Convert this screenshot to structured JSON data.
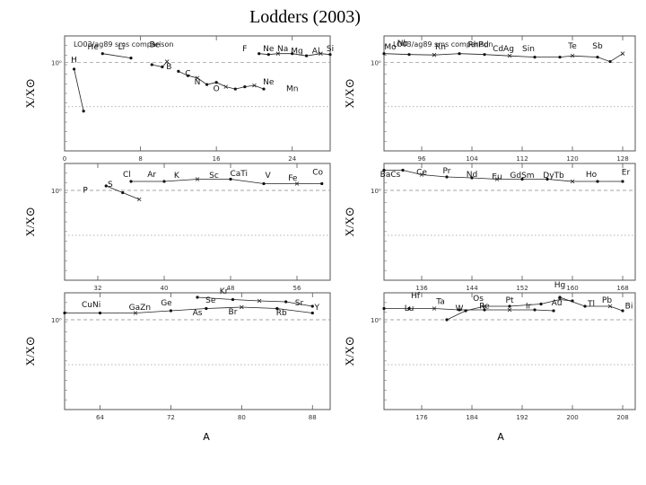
{
  "page": {
    "title": "Lodders (2003)"
  },
  "chart_data": [
    {
      "type": "scatter",
      "subtitle": "LO03/ag89 sms comparison",
      "ylabel": "X/X⊙",
      "ytick_label": "10⁰",
      "xlim": [
        0,
        28
      ],
      "ylim": [
        -2.0,
        0.6
      ],
      "xticks": [
        0,
        8,
        16,
        24
      ],
      "segments": [
        [
          [
            1.0,
            -0.15
          ],
          [
            2.0,
            -1.1
          ]
        ],
        [
          [
            4,
            0.2
          ],
          [
            7,
            0.1
          ]
        ],
        [
          [
            9.2,
            -0.05
          ],
          [
            10.3,
            -0.1
          ],
          [
            10.8,
            0.02
          ]
        ],
        [
          [
            12,
            -0.2
          ],
          [
            13,
            -0.3
          ],
          [
            14,
            -0.35
          ],
          [
            15,
            -0.5
          ],
          [
            16,
            -0.45
          ],
          [
            17,
            -0.55
          ],
          [
            18,
            -0.6
          ],
          [
            19,
            -0.55
          ],
          [
            20,
            -0.52
          ],
          [
            21,
            -0.6
          ]
        ],
        [
          [
            20.5,
            0.2
          ],
          [
            21.5,
            0.18
          ],
          [
            22.5,
            0.2
          ],
          [
            24,
            0.2
          ],
          [
            25.5,
            0.15
          ],
          [
            27,
            0.2
          ],
          [
            28,
            0.18
          ]
        ]
      ],
      "labels": [
        {
          "text": "H",
          "x": 1.0,
          "y": 0.0
        },
        {
          "text": "He",
          "x": 3.0,
          "y": 0.3
        },
        {
          "text": "Li",
          "x": 6.0,
          "y": 0.3
        },
        {
          "text": "Be",
          "x": 9.5,
          "y": 0.35
        },
        {
          "text": "B",
          "x": 11.0,
          "y": -0.15
        },
        {
          "text": "C",
          "x": 13.0,
          "y": -0.3
        },
        {
          "text": "N",
          "x": 14.0,
          "y": -0.5
        },
        {
          "text": "O",
          "x": 16.0,
          "y": -0.65
        },
        {
          "text": "F",
          "x": 19.0,
          "y": 0.25
        },
        {
          "text": "Ne",
          "x": 21.5,
          "y": 0.25
        },
        {
          "text": "Na",
          "x": 23.0,
          "y": 0.25
        },
        {
          "text": "Mg",
          "x": 24.5,
          "y": 0.2
        },
        {
          "text": "Al",
          "x": 26.5,
          "y": 0.2
        },
        {
          "text": "Si",
          "x": 28.0,
          "y": 0.25
        },
        {
          "text": "Ne",
          "x": 21.5,
          "y": -0.5
        },
        {
          "text": "Mn",
          "x": 24.0,
          "y": -0.65
        }
      ]
    },
    {
      "type": "scatter",
      "subtitle": "LO03/ag89 sms comparison",
      "ylabel": "X/X⊙",
      "ytick_label": "10⁰",
      "xlim": [
        90,
        130
      ],
      "ylim": [
        -2.0,
        0.6
      ],
      "xticks": [
        96,
        104,
        112,
        120,
        128
      ],
      "segments": [
        [
          [
            90,
            0.2
          ],
          [
            94,
            0.18
          ],
          [
            98,
            0.17
          ],
          [
            102,
            0.2
          ],
          [
            106,
            0.18
          ],
          [
            110,
            0.15
          ],
          [
            114,
            0.12
          ],
          [
            118,
            0.12
          ],
          [
            120,
            0.15
          ],
          [
            124,
            0.12
          ],
          [
            126,
            0.02
          ],
          [
            128,
            0.2
          ]
        ]
      ],
      "labels": [
        {
          "text": "Mo",
          "x": 91,
          "y": 0.3
        },
        {
          "text": "Nb",
          "x": 93,
          "y": 0.38
        },
        {
          "text": "Rn",
          "x": 99,
          "y": 0.3
        },
        {
          "text": "RhPd",
          "x": 105,
          "y": 0.35
        },
        {
          "text": "CdAg",
          "x": 109,
          "y": 0.25
        },
        {
          "text": "Sin",
          "x": 113,
          "y": 0.25
        },
        {
          "text": "Te",
          "x": 120,
          "y": 0.32
        },
        {
          "text": "Sb",
          "x": 124,
          "y": 0.32
        }
      ]
    },
    {
      "type": "scatter",
      "ylabel": "X/X⊙",
      "ytick_label": "10⁰",
      "xlim": [
        28,
        60
      ],
      "ylim": [
        -2.0,
        0.6
      ],
      "xticks": [
        32,
        40,
        48,
        56
      ],
      "segments": [
        [
          [
            33,
            0.1
          ],
          [
            35,
            -0.05
          ],
          [
            37,
            -0.2
          ]
        ],
        [
          [
            36,
            0.2
          ],
          [
            40,
            0.2
          ],
          [
            44,
            0.25
          ],
          [
            48,
            0.25
          ],
          [
            52,
            0.15
          ],
          [
            56,
            0.15
          ],
          [
            59,
            0.15
          ]
        ]
      ],
      "labels": [
        {
          "text": "P",
          "x": 30.5,
          "y": -0.05
        },
        {
          "text": "S",
          "x": 33.5,
          "y": 0.08
        },
        {
          "text": "Cl",
          "x": 35.5,
          "y": 0.3
        },
        {
          "text": "Ar",
          "x": 38.5,
          "y": 0.3
        },
        {
          "text": "K",
          "x": 41.5,
          "y": 0.28
        },
        {
          "text": "Sc",
          "x": 46,
          "y": 0.28
        },
        {
          "text": "CaTi",
          "x": 49,
          "y": 0.32
        },
        {
          "text": "V",
          "x": 52.5,
          "y": 0.28
        },
        {
          "text": "Fe",
          "x": 55.5,
          "y": 0.22
        },
        {
          "text": "Co",
          "x": 58.5,
          "y": 0.35
        }
      ]
    },
    {
      "type": "scatter",
      "ylabel": "X/X⊙",
      "ytick_label": "10⁰",
      "xlim": [
        130,
        170
      ],
      "ylim": [
        -2.0,
        0.6
      ],
      "xticks": [
        136,
        144,
        152,
        160,
        168
      ],
      "segments": [
        [
          [
            130,
            0.45
          ],
          [
            133,
            0.45
          ],
          [
            136,
            0.35
          ],
          [
            140,
            0.3
          ],
          [
            144,
            0.28
          ],
          [
            148,
            0.25
          ],
          [
            152,
            0.25
          ],
          [
            156,
            0.25
          ],
          [
            160,
            0.2
          ],
          [
            164,
            0.2
          ],
          [
            168,
            0.2
          ]
        ]
      ],
      "labels": [
        {
          "text": "BaCs",
          "x": 131,
          "y": 0.3
        },
        {
          "text": "Ce",
          "x": 136,
          "y": 0.35
        },
        {
          "text": "Pr",
          "x": 140,
          "y": 0.38
        },
        {
          "text": "Nd",
          "x": 144,
          "y": 0.3
        },
        {
          "text": "Eu",
          "x": 148,
          "y": 0.25
        },
        {
          "text": "GdSm",
          "x": 152,
          "y": 0.28
        },
        {
          "text": "DyTb",
          "x": 157,
          "y": 0.28
        },
        {
          "text": "Ho",
          "x": 163,
          "y": 0.3
        },
        {
          "text": "Er",
          "x": 168.5,
          "y": 0.35
        }
      ]
    },
    {
      "type": "scatter",
      "ylabel": "X/X⊙",
      "ytick_label": "10⁰",
      "xlim": [
        60,
        90
      ],
      "ylim": [
        -2.0,
        0.6
      ],
      "xticks": [
        64,
        72,
        80,
        88
      ],
      "xlabel": "A",
      "segments": [
        [
          [
            60,
            0.15
          ],
          [
            64,
            0.15
          ],
          [
            68,
            0.15
          ],
          [
            72,
            0.2
          ],
          [
            76,
            0.25
          ],
          [
            80,
            0.28
          ],
          [
            84,
            0.25
          ],
          [
            88,
            0.15
          ]
        ],
        [
          [
            75,
            0.5
          ],
          [
            79,
            0.45
          ],
          [
            82,
            0.42
          ],
          [
            85,
            0.4
          ],
          [
            88,
            0.3
          ]
        ]
      ],
      "labels": [
        {
          "text": "CuNi",
          "x": 63,
          "y": 0.28
        },
        {
          "text": "GaZn",
          "x": 68.5,
          "y": 0.22
        },
        {
          "text": "Ge",
          "x": 71.5,
          "y": 0.32
        },
        {
          "text": "As",
          "x": 75,
          "y": 0.1
        },
        {
          "text": "Se",
          "x": 76.5,
          "y": 0.38
        },
        {
          "text": "Br",
          "x": 79,
          "y": 0.12
        },
        {
          "text": "Kr",
          "x": 78,
          "y": 0.58
        },
        {
          "text": "Rb",
          "x": 84.5,
          "y": 0.1
        },
        {
          "text": "Sr",
          "x": 86.5,
          "y": 0.32
        },
        {
          "text": "Y",
          "x": 88.5,
          "y": 0.22
        }
      ]
    },
    {
      "type": "scatter",
      "ylabel": "X/X⊙",
      "ytick_label": "10⁰",
      "xlim": [
        170,
        210
      ],
      "ylim": [
        -2.0,
        0.6
      ],
      "xticks": [
        176,
        184,
        192,
        200,
        208
      ],
      "xlabel": "A",
      "segments": [
        [
          [
            170,
            0.25
          ],
          [
            174,
            0.25
          ],
          [
            178,
            0.25
          ],
          [
            182,
            0.22
          ],
          [
            186,
            0.22
          ],
          [
            190,
            0.22
          ],
          [
            194,
            0.22
          ],
          [
            197,
            0.2
          ]
        ],
        [
          [
            180,
            0.0
          ],
          [
            183,
            0.2
          ],
          [
            186,
            0.3
          ],
          [
            190,
            0.3
          ],
          [
            195,
            0.35
          ],
          [
            198,
            0.45
          ],
          [
            200,
            0.42
          ]
        ],
        [
          [
            198,
            0.5
          ],
          [
            202,
            0.3
          ],
          [
            206,
            0.3
          ],
          [
            208,
            0.2
          ]
        ]
      ],
      "labels": [
        {
          "text": "Hf",
          "x": 175,
          "y": 0.48
        },
        {
          "text": "Lu",
          "x": 174,
          "y": 0.2
        },
        {
          "text": "Ta",
          "x": 179,
          "y": 0.35
        },
        {
          "text": "W",
          "x": 182,
          "y": 0.2
        },
        {
          "text": "Os",
          "x": 185,
          "y": 0.42
        },
        {
          "text": "Re",
          "x": 186,
          "y": 0.25
        },
        {
          "text": "Pt",
          "x": 190,
          "y": 0.38
        },
        {
          "text": "Ir",
          "x": 193,
          "y": 0.25
        },
        {
          "text": "Hg",
          "x": 198,
          "y": 0.72
        },
        {
          "text": "Au",
          "x": 197.5,
          "y": 0.32
        },
        {
          "text": "Tl",
          "x": 203,
          "y": 0.3
        },
        {
          "text": "Pb",
          "x": 205.5,
          "y": 0.38
        },
        {
          "text": "Bi",
          "x": 209,
          "y": 0.25
        }
      ]
    }
  ]
}
